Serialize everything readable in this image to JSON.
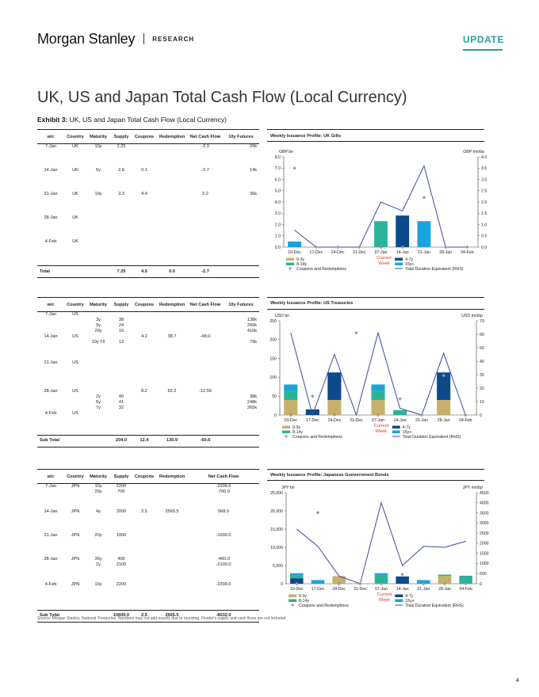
{
  "header": {
    "logo": "Morgan Stanley",
    "research": "RESEARCH",
    "badge": "UPDATE"
  },
  "title": "UK, US and Japan Total Cash Flow (Local Currency)",
  "exhibit": {
    "label": "Exhibit 3:",
    "text": "UK, US and Japan Total Cash Flow (Local Currency)"
  },
  "columns": [
    "w/c",
    "Country",
    "Maturity",
    "Supply",
    "Coupons",
    "Redemption",
    "Net Cash Flow",
    "10y Futures"
  ],
  "uk_table": {
    "rows": [
      {
        "wc": "7-Jan",
        "country": "UK",
        "maturity": "10y",
        "supply": "2.25",
        "coupons": "",
        "redemption": "",
        "net": "-2.3",
        "fut": "20k"
      },
      {
        "wc": "14-Jan",
        "country": "UK",
        "maturity": "5y",
        "supply": "2.8",
        "coupons": "0.1",
        "redemption": "",
        "net": "-2.7",
        "fut": "14k"
      },
      {
        "wc": "21-Jan",
        "country": "UK",
        "maturity": "19y",
        "supply": "2.3",
        "coupons": "4.4",
        "redemption": "",
        "net": "2.2",
        "fut": "36k"
      },
      {
        "wc": "28-Jan",
        "country": "UK",
        "maturity": "",
        "supply": "",
        "coupons": "",
        "redemption": "",
        "net": "",
        "fut": ""
      },
      {
        "wc": "4-Feb",
        "country": "UK",
        "maturity": "",
        "supply": "",
        "coupons": "",
        "redemption": "",
        "net": "",
        "fut": ""
      }
    ],
    "total": {
      "label": "Total",
      "supply": "7.25",
      "coupons": "4.5",
      "redemption": "0.0",
      "net": "-2.7"
    }
  },
  "us_table": {
    "rows": [
      {
        "wc": "7-Jan",
        "country": "US",
        "maturity": "",
        "supply": "",
        "coupons": "",
        "redemption": "",
        "net": "",
        "fut": ""
      },
      {
        "wc": "",
        "country": "",
        "maturity": "3y",
        "supply": "38",
        "coupons": "",
        "redemption": "",
        "net": "",
        "fut": "138k"
      },
      {
        "wc": "",
        "country": "",
        "maturity": "9y",
        "supply": "24",
        "coupons": "",
        "redemption": "",
        "net": "",
        "fut": "260k"
      },
      {
        "wc": "",
        "country": "",
        "maturity": "29y",
        "supply": "16",
        "coupons": "",
        "redemption": "",
        "net": "",
        "fut": "410k"
      },
      {
        "wc": "14-Jan",
        "country": "US",
        "maturity": "",
        "supply": "",
        "coupons": "4.2",
        "redemption": "38.7",
        "net": "-48.0",
        "fut": ""
      },
      {
        "wc": "",
        "country": "",
        "maturity": "10y TII",
        "supply": "13",
        "coupons": "",
        "redemption": "",
        "net": "",
        "fut": "79k"
      },
      {
        "wc": "21-Jan",
        "country": "US",
        "maturity": "",
        "supply": "",
        "coupons": "",
        "redemption": "",
        "net": "",
        "fut": ""
      },
      {
        "wc": "28-Jan",
        "country": "US",
        "maturity": "",
        "supply": "",
        "coupons": "8.2",
        "redemption": "92.2",
        "net": "-12.59",
        "fut": ""
      },
      {
        "wc": "",
        "country": "",
        "maturity": "2y",
        "supply": "40",
        "coupons": "",
        "redemption": "",
        "net": "",
        "fut": "38k"
      },
      {
        "wc": "",
        "country": "",
        "maturity": "5y",
        "supply": "41",
        "coupons": "",
        "redemption": "",
        "net": "",
        "fut": "248k"
      },
      {
        "wc": "",
        "country": "",
        "maturity": "7y",
        "supply": "32",
        "coupons": "",
        "redemption": "",
        "net": "",
        "fut": "265k"
      },
      {
        "wc": "4-Feb",
        "country": "US",
        "maturity": "",
        "supply": "",
        "coupons": "",
        "redemption": "",
        "net": "",
        "fut": ""
      }
    ],
    "total": {
      "label": "Sub Total",
      "supply": "204.0",
      "coupons": "12.4",
      "redemption": "130.9",
      "net": "-60.6"
    }
  },
  "jp_table": {
    "rows": [
      {
        "wc": "7-Jan",
        "country": "JPN",
        "maturity": "10y",
        "supply": "2200",
        "coupons": "",
        "redemption": "",
        "net": "-2200.0"
      },
      {
        "wc": "",
        "country": "",
        "maturity": "29y",
        "supply": "700",
        "coupons": "",
        "redemption": "",
        "net": "-700.0"
      },
      {
        "wc": "14-Jan",
        "country": "JPN",
        "maturity": "4y",
        "supply": "2000",
        "coupons": "2.5",
        "redemption": "2565.5",
        "net": "568.0"
      },
      {
        "wc": "21-Jan",
        "country": "JPN",
        "maturity": "20y",
        "supply": "1000",
        "coupons": "",
        "redemption": "",
        "net": "-1000.0"
      },
      {
        "wc": "28-Jan",
        "country": "JPN",
        "maturity": "39y",
        "supply": "400",
        "coupons": "",
        "redemption": "",
        "net": "-400.0"
      },
      {
        "wc": "",
        "country": "",
        "maturity": "2y",
        "supply": "2100",
        "coupons": "",
        "redemption": "",
        "net": "-2100.0"
      },
      {
        "wc": "4-Feb",
        "country": "JPN",
        "maturity": "10y",
        "supply": "2200",
        "coupons": "",
        "redemption": "",
        "net": "-2200.0"
      }
    ],
    "total": {
      "label": "Sub Total",
      "supply": "10600.0",
      "coupons": "2.5",
      "redemption": "2565.5",
      "net": "-8032.0"
    }
  },
  "chart_data": [
    {
      "type": "bar",
      "title": "Weekly Issuance Profile: UK Gilts",
      "ylabel_left": "GBP bn",
      "ylabel_right": "GBP mn/bp",
      "ylim": [
        0,
        8
      ],
      "ylim_right": [
        0,
        4
      ],
      "yticks": [
        "0.0",
        "1.0",
        "2.0",
        "3.0",
        "4.0",
        "5.0",
        "6.0",
        "7.0",
        "8.0"
      ],
      "yticks_right": [
        "0.0",
        "0.5",
        "1.0",
        "1.5",
        "2.0",
        "2.5",
        "3.0",
        "3.5",
        "4.0"
      ],
      "categories": [
        "10-Dec",
        "17-Dec",
        "24-Dec",
        "31-Dec",
        "07-Jan",
        "14-Jan",
        "21-Jan",
        "28-Jan",
        "04-Feb"
      ],
      "series": [
        {
          "name": "0-3y",
          "color": "#c8b06a",
          "values": [
            0,
            0,
            0,
            0,
            0,
            0,
            0,
            0,
            0
          ]
        },
        {
          "name": "4-7y",
          "color": "#0c4a8c",
          "values": [
            0,
            0,
            0,
            0,
            0,
            2.8,
            0,
            0,
            0
          ]
        },
        {
          "name": "8-14y",
          "color": "#2bb39a",
          "values": [
            0,
            0,
            0,
            0,
            2.3,
            0,
            0,
            0,
            0
          ]
        },
        {
          "name": "15y+",
          "color": "#1ba3e0",
          "values": [
            0.5,
            0,
            0,
            0,
            0,
            0,
            2.3,
            0,
            0
          ]
        }
      ],
      "markers": {
        "name": "Coupons and Redemptions",
        "color": "#999999",
        "values": [
          7.0,
          0,
          0,
          0,
          0,
          0,
          4.4,
          0,
          0
        ]
      },
      "line": {
        "name": "Total Duration Equivalent (RHS)",
        "color": "#3a4aa0",
        "values": [
          0.75,
          0,
          0,
          0,
          2.0,
          1.6,
          3.6,
          0,
          0
        ]
      },
      "annotation": [
        "Current",
        "Week"
      ]
    },
    {
      "type": "bar",
      "title": "Weekly Issuance Profile: US Treasuries",
      "ylabel_left": "USD bn",
      "ylabel_right": "USD mn/bp",
      "ylim": [
        0,
        250
      ],
      "ylim_right": [
        0,
        70
      ],
      "yticks": [
        "0",
        "50",
        "100",
        "150",
        "200",
        "250"
      ],
      "yticks_right": [
        "0",
        "10",
        "20",
        "30",
        "40",
        "50",
        "60",
        "70"
      ],
      "categories": [
        "10-Dec",
        "17-Dec",
        "24-Dec",
        "31-Dec",
        "07-Jan",
        "14-Jan",
        "21-Jan",
        "28-Jan",
        "04-Feb"
      ],
      "series": [
        {
          "name": "0-3y",
          "color": "#c8b06a",
          "values": [
            40,
            0,
            40,
            0,
            40,
            0,
            0,
            40,
            0
          ]
        },
        {
          "name": "4-7y",
          "color": "#0c4a8c",
          "values": [
            0,
            15,
            73,
            0,
            0,
            0,
            0,
            73,
            0
          ]
        },
        {
          "name": "8-14y",
          "color": "#2bb39a",
          "values": [
            25,
            0,
            0,
            0,
            25,
            13,
            0,
            0,
            0
          ]
        },
        {
          "name": "15y+",
          "color": "#1ba3e0",
          "values": [
            16,
            0,
            0,
            0,
            16,
            0,
            0,
            0,
            0
          ]
        }
      ],
      "markers": {
        "name": "Coupons and Redemptions",
        "color": "#999999",
        "values": [
          0,
          50,
          0,
          218,
          0,
          43,
          0,
          105,
          0
        ]
      },
      "line": {
        "name": "Total Duration Equivalent (RHS)",
        "color": "#3a4aa0",
        "values": [
          61,
          0,
          45,
          0,
          61,
          5,
          0,
          46,
          0
        ]
      },
      "annotation": [
        "Current",
        "Week"
      ]
    },
    {
      "type": "bar",
      "title": "Weekly Issuance Profile: Japanese Goovernment Bonds",
      "ylabel_left": "JPY bn",
      "ylabel_right": "JPY mn/bp",
      "ylim": [
        0,
        25000
      ],
      "ylim_right": [
        0,
        4500
      ],
      "yticks": [
        "0",
        "5,000",
        "10,000",
        "15,000",
        "20,000",
        "25,000"
      ],
      "yticks_right": [
        "0",
        "500",
        "1000",
        "1500",
        "2000",
        "2500",
        "3000",
        "3500",
        "4000",
        "4500"
      ],
      "categories": [
        "10-Dec",
        "17-Dec",
        "24-Dec",
        "31-Dec",
        "07-Jan",
        "14-Jan",
        "21-Jan",
        "28-Jan",
        "04-Feb"
      ],
      "series": [
        {
          "name": "0-3y",
          "color": "#c8b06a",
          "values": [
            0,
            0,
            2100,
            0,
            0,
            0,
            0,
            2100,
            0
          ]
        },
        {
          "name": "4-7y",
          "color": "#0c4a8c",
          "values": [
            1500,
            0,
            0,
            0,
            0,
            2000,
            0,
            0,
            0
          ]
        },
        {
          "name": "8-14y",
          "color": "#2bb39a",
          "values": [
            700,
            0,
            0,
            0,
            2200,
            0,
            0,
            400,
            2200
          ]
        },
        {
          "name": "15y+",
          "color": "#1ba3e0",
          "values": [
            700,
            1000,
            0,
            0,
            700,
            0,
            1000,
            0,
            0
          ]
        }
      ],
      "markers": {
        "name": "Coupons and Redemptions",
        "color": "#999999",
        "values": [
          0,
          19500,
          0,
          0,
          0,
          2550,
          0,
          0,
          0
        ]
      },
      "line": {
        "name": "Total Duration Equivalent (RHS)",
        "color": "#3a4aa0",
        "values": [
          2700,
          1850,
          380,
          0,
          4000,
          900,
          1850,
          1800,
          2100
        ]
      },
      "annotation": [
        "Current",
        "Week"
      ]
    }
  ],
  "source": "Source: Morgan Stanley, National Treasuries. Numbers may not add exactly due to rounding. Floater's supply and cash flows are not included",
  "page_number": "4"
}
